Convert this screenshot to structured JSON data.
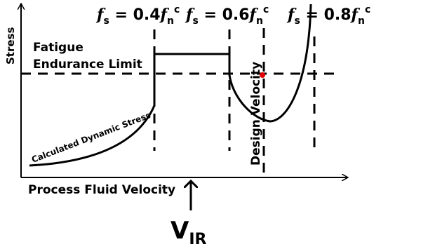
{
  "y_axis_label": "Stress",
  "x_axis_label": "Process Fluid Velocity",
  "limit_label": [
    "Fatigue",
    "Endurance Limit"
  ],
  "curve_label": "Calculated Dynamic Stress",
  "design_label": "Design Velocity",
  "vir_label": {
    "symbol": "V",
    "subscript": "IR"
  },
  "frequency_labels": [
    {
      "symbol": "f",
      "subscript": "s",
      "relation": " = 0.4",
      "symbol2": "f",
      "subscript2": "n",
      "superscript": "c"
    },
    {
      "symbol": "f",
      "subscript": "s",
      "relation": " = 0.6",
      "symbol2": "f",
      "subscript2": "n",
      "superscript": "c"
    },
    {
      "symbol": "f",
      "subscript": "s",
      "relation": " = 0.8",
      "symbol2": "f",
      "subscript2": "n",
      "superscript": "c"
    }
  ]
}
